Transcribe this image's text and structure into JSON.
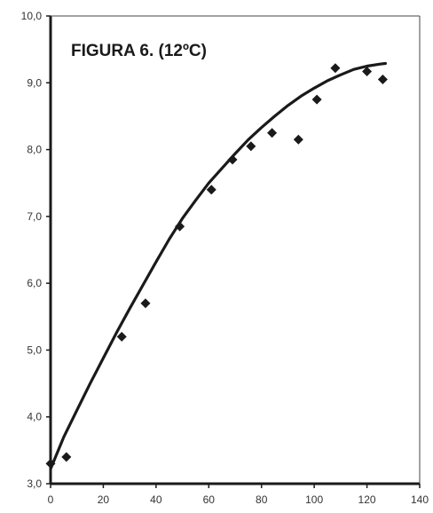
{
  "chart_data": {
    "type": "scatter",
    "title": "FIGURA 6. (12ºC)",
    "xlabel": "",
    "ylabel": "",
    "xlim": [
      0,
      140
    ],
    "ylim": [
      3.0,
      10.0
    ],
    "x_ticks": [
      "0",
      "20",
      "40",
      "60",
      "80",
      "100",
      "120",
      "140"
    ],
    "y_ticks": [
      "3,0",
      "4,0",
      "5,0",
      "6,0",
      "7,0",
      "8,0",
      "9,0",
      "10,0"
    ],
    "grid": false,
    "legend": "none",
    "series": [
      {
        "kind": "markers",
        "marker": "diamond",
        "color": "#1a1a1a",
        "x": [
          0,
          6,
          27,
          36,
          49,
          61,
          69,
          76,
          84,
          94,
          101,
          108,
          120,
          126
        ],
        "y": [
          3.3,
          3.4,
          5.2,
          5.7,
          6.85,
          7.4,
          7.85,
          8.05,
          8.25,
          8.15,
          8.75,
          9.22,
          9.17,
          9.05
        ]
      },
      {
        "kind": "line",
        "color": "#1a1a1a",
        "x": [
          0,
          5,
          10,
          15,
          20,
          25,
          30,
          35,
          40,
          45,
          50,
          55,
          60,
          65,
          70,
          75,
          80,
          85,
          90,
          95,
          100,
          105,
          110,
          115,
          120,
          125,
          127
        ],
        "y": [
          3.22,
          3.7,
          4.1,
          4.5,
          4.88,
          5.26,
          5.62,
          5.97,
          6.32,
          6.66,
          6.97,
          7.24,
          7.5,
          7.72,
          7.94,
          8.15,
          8.33,
          8.5,
          8.66,
          8.8,
          8.92,
          9.03,
          9.12,
          9.2,
          9.25,
          9.28,
          9.29
        ]
      }
    ]
  }
}
